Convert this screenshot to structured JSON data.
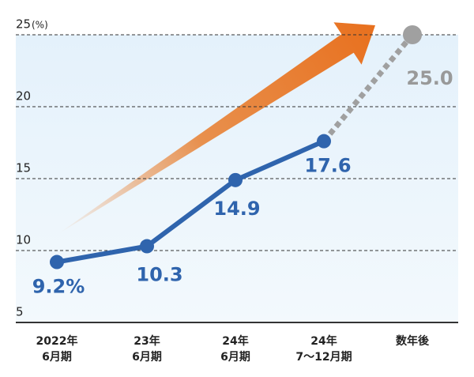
{
  "chart_data": {
    "type": "line",
    "y_unit": "(%)",
    "categories": [
      [
        "2022年",
        "6月期"
      ],
      [
        "23年",
        "6月期"
      ],
      [
        "24年",
        "6月期"
      ],
      [
        "24年",
        "7～12月期"
      ],
      [
        "数年後"
      ]
    ],
    "series": [
      {
        "color": "#2f64ad",
        "style": "solid",
        "values": [
          9.2,
          10.3,
          14.9,
          17.6,
          null
        ],
        "value_labels": [
          "9.2%",
          "10.3",
          "14.9",
          "17.6",
          null
        ]
      },
      {
        "color": "#a0a0a0",
        "style": "dotted",
        "values": [
          null,
          null,
          null,
          17.6,
          25.0
        ],
        "value_labels": [
          null,
          null,
          null,
          null,
          "25.0"
        ]
      }
    ],
    "ylim": [
      5,
      25
    ],
    "yticks": [
      5,
      10,
      15,
      20,
      25
    ],
    "grid": true
  }
}
